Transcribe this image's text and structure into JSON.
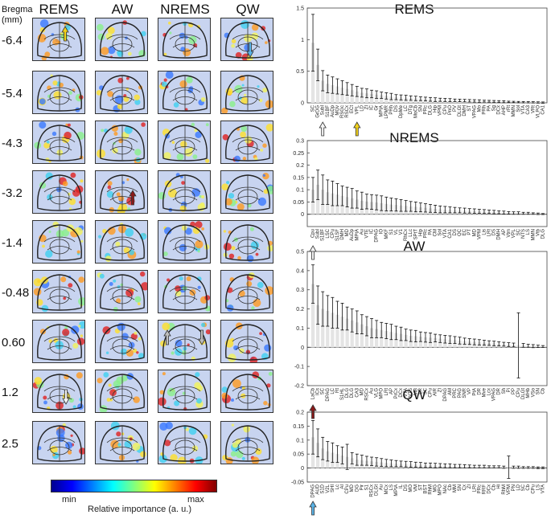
{
  "left": {
    "column_headers": [
      "REMS",
      "AW",
      "NREMS",
      "QW"
    ],
    "bregma_title_line1": "Bregma",
    "bregma_title_line2": "(mm)",
    "bregma_values": [
      "-6.4",
      "-5.4",
      "-4.3",
      "-3.2",
      "-1.4",
      "-0.48",
      "0.60",
      "1.2",
      "2.5"
    ],
    "colorbar": {
      "min_label": "min",
      "max_label": "max",
      "caption": "Relative importance (a. u.)"
    },
    "arrow_colors": {
      "yellow": "#f2d21a",
      "blue": "#5ab4e8",
      "red": "#8b1a1a",
      "white": "#f4f4f4",
      "gray": "#bdbdbd"
    }
  },
  "chart_data": [
    {
      "type": "bar",
      "title": "REMS",
      "ylim": [
        0,
        1.5
      ],
      "yticks": [
        0,
        0.5,
        1,
        1.5
      ],
      "categories": [
        "SC",
        "GrDG",
        "SubI",
        "S1BF",
        "AuDp",
        "MGv",
        "RSGc",
        "RSCx",
        "ECt",
        "VPL",
        "LD",
        "ZI",
        "IC",
        "Gr",
        "MPtA",
        "LPMR",
        "PRh",
        "DS",
        "DpMe",
        "LC",
        "DTg",
        "MoCb",
        "SN",
        "PRc",
        "DLG",
        "Hip",
        "VPM",
        "CPu",
        "PnO",
        "PV",
        "DLGt",
        "DMH",
        "ST",
        "VPAG",
        "Mo",
        "PRh",
        "PA",
        "Sg",
        "DCx",
        "AHP",
        "rRt",
        "MMN",
        "Sol",
        "VTA",
        "CA3",
        "VRt",
        "VLPO",
        "CA1"
      ],
      "values": [
        0.95,
        0.6,
        0.35,
        0.3,
        0.28,
        0.26,
        0.24,
        0.22,
        0.2,
        0.18,
        0.16,
        0.15,
        0.14,
        0.13,
        0.12,
        0.11,
        0.1,
        0.09,
        0.085,
        0.08,
        0.075,
        0.07,
        0.065,
        0.06,
        0.055,
        0.05,
        0.048,
        0.045,
        0.042,
        0.04,
        0.038,
        0.035,
        0.032,
        0.03,
        0.028,
        0.026,
        0.024,
        0.022,
        0.02,
        0.018,
        0.016,
        0.014,
        0.012,
        0.01,
        0.009,
        0.008,
        0.006,
        0.004
      ],
      "errors": [
        0.45,
        0.25,
        0.16,
        0.14,
        0.13,
        0.12,
        0.11,
        0.1,
        0.09,
        0.08,
        0.07,
        0.07,
        0.06,
        0.06,
        0.05,
        0.05,
        0.05,
        0.04,
        0.04,
        0.04,
        0.035,
        0.035,
        0.03,
        0.03,
        0.03,
        0.03,
        0.025,
        0.025,
        0.025,
        0.02,
        0.02,
        0.02,
        0.02,
        0.02,
        0.02,
        0.015,
        0.015,
        0.015,
        0.015,
        0.015,
        0.01,
        0.01,
        0.01,
        0.01,
        0.01,
        0.01,
        0.01,
        0.01
      ],
      "arrows": [
        {
          "index": 2,
          "color": "white"
        },
        {
          "index": 9,
          "color": "yellow"
        }
      ]
    },
    {
      "type": "bar",
      "title": "NREMS",
      "ylim": [
        -0.05,
        0.3
      ],
      "yticks": [
        0,
        0.05,
        0.1,
        0.15,
        0.2,
        0.25,
        0.3
      ],
      "categories": [
        "Cpu",
        "SubI",
        "S1BF",
        "LSC",
        "CPu",
        "S1SF",
        "DMH",
        "MD",
        "AuDp",
        "MPtA",
        "Au",
        "VTE",
        "IC",
        "DPAG",
        "IO",
        "MKF",
        "S1",
        "VL",
        "V1",
        "RhCx",
        "LLc",
        "SPtT",
        "Hip",
        "PRc",
        "PA",
        "CM",
        "Sol",
        "VTA",
        "CA1",
        "DS",
        "OC",
        "EC",
        "PT",
        "MD",
        "VPM",
        "Lis",
        "LRt",
        "DS",
        "DMH",
        "AP",
        "Vtm",
        "VPL",
        "SC",
        "NTS",
        "LS",
        "MMN",
        "Vtb",
        "DLG"
      ],
      "values": [
        0.1,
        0.12,
        0.1,
        0.09,
        0.085,
        0.08,
        0.075,
        0.07,
        0.065,
        0.06,
        0.055,
        0.052,
        0.05,
        0.048,
        0.045,
        0.042,
        0.04,
        0.038,
        0.036,
        0.034,
        0.032,
        0.03,
        0.028,
        0.026,
        0.024,
        0.022,
        0.02,
        0.019,
        0.018,
        0.017,
        0.016,
        0.015,
        0.014,
        0.013,
        0.012,
        0.011,
        0.01,
        0.009,
        0.008,
        0.007,
        0.006,
        0.005,
        0.005,
        0.004,
        0.004,
        0.003,
        0.002,
        0.001
      ],
      "errors": [
        0.05,
        0.06,
        0.06,
        0.05,
        0.05,
        0.045,
        0.04,
        0.04,
        0.04,
        0.035,
        0.035,
        0.03,
        0.03,
        0.03,
        0.03,
        0.028,
        0.026,
        0.025,
        0.024,
        0.022,
        0.02,
        0.02,
        0.018,
        0.017,
        0.016,
        0.015,
        0.014,
        0.013,
        0.012,
        0.011,
        0.01,
        0.01,
        0.009,
        0.009,
        0.008,
        0.008,
        0.007,
        0.007,
        0.006,
        0.006,
        0.005,
        0.005,
        0.005,
        0.004,
        0.004,
        0.003,
        0.003,
        0.002
      ],
      "arrows": [
        {
          "index": 0,
          "color": "white"
        }
      ]
    },
    {
      "type": "bar",
      "title": "AW",
      "ylim": [
        -0.2,
        0.5
      ],
      "yticks": [
        -0.2,
        -0.1,
        0,
        0.1,
        0.2,
        0.3,
        0.4,
        0.5
      ],
      "categories": [
        "LaCb",
        "ICs",
        "SC",
        "DPAG",
        "LC",
        "Rt",
        "S1HL",
        "DLG",
        "DLG",
        "CA3",
        "MD",
        "RSCx",
        "Au",
        "VLG",
        "MPO",
        "LRt",
        "AP",
        "PrCx",
        "DCx",
        "VTA",
        "NTS",
        "MB",
        "LR",
        "SC",
        "CPu",
        "AIR",
        "ZI",
        "DPAG",
        "AM",
        "PRC",
        "PAG",
        "SNR",
        "VP",
        "PtA",
        "DR",
        "Mve",
        "Lcx",
        "VPAG",
        "DR",
        "Sh",
        "Pi",
        "PP",
        "CPu",
        "DLGt",
        "MHb",
        "VSo",
        "SN",
        "Cb"
      ],
      "values": [
        0.33,
        0.22,
        0.2,
        0.19,
        0.18,
        0.17,
        0.16,
        0.15,
        0.14,
        0.13,
        0.12,
        0.11,
        0.1,
        0.095,
        0.09,
        0.085,
        0.08,
        0.075,
        0.07,
        0.065,
        0.06,
        0.058,
        0.055,
        0.052,
        0.05,
        0.048,
        0.045,
        0.042,
        0.04,
        0.038,
        0.035,
        0.032,
        0.03,
        0.028,
        0.026,
        0.024,
        0.022,
        0.02,
        0.018,
        0.016,
        0.014,
        0.012,
        0.01,
        0.01,
        0.008,
        0.006,
        0.005,
        0.004
      ],
      "errors": [
        0.1,
        0.1,
        0.09,
        0.08,
        0.08,
        0.07,
        0.07,
        0.06,
        0.06,
        0.06,
        0.05,
        0.05,
        0.05,
        0.045,
        0.04,
        0.04,
        0.04,
        0.035,
        0.035,
        0.03,
        0.03,
        0.03,
        0.025,
        0.025,
        0.025,
        0.02,
        0.02,
        0.02,
        0.02,
        0.018,
        0.018,
        0.016,
        0.015,
        0.015,
        0.014,
        0.013,
        0.012,
        0.012,
        0.011,
        0.01,
        0.01,
        0.01,
        0.17,
        0.01,
        0.008,
        0.008,
        0.006,
        0.005
      ],
      "arrows": [
        {
          "index": 0,
          "color": "red"
        }
      ]
    },
    {
      "type": "bar",
      "title": "QW",
      "ylim": [
        -0.05,
        0.2
      ],
      "yticks": [
        -0.05,
        0,
        0.05,
        0.1,
        0.15,
        0.2
      ],
      "categories": [
        "DPAG",
        "AUD",
        "S1D",
        "V2L",
        "SHI",
        "Lc",
        "AI",
        "CPu",
        "MD",
        "DG",
        "Pir",
        "S1",
        "RSCx",
        "DLGt",
        "Au",
        "MCx",
        "LS",
        "MPtA",
        "IL",
        "DS",
        "MO",
        "VM",
        "ST",
        "BST",
        "RhM",
        "MG",
        "MPO",
        "NAc",
        "Cb",
        "MM",
        "SN",
        "Cx",
        "ZI",
        "LRt",
        "PRc",
        "RRF",
        "DCx",
        "Cb",
        "Hi",
        "RhM",
        "VPM",
        "PN",
        "LD",
        "SC",
        "Cb",
        "CPu",
        "LS",
        "VTA"
      ],
      "values": [
        0.11,
        0.09,
        0.07,
        0.06,
        0.055,
        0.05,
        0.045,
        0.04,
        0.035,
        0.03,
        0.028,
        0.026,
        0.024,
        0.022,
        0.02,
        0.018,
        0.017,
        0.016,
        0.015,
        0.014,
        0.013,
        0.012,
        0.011,
        0.01,
        0.01,
        0.009,
        0.009,
        0.008,
        0.008,
        0.007,
        0.007,
        0.006,
        0.006,
        0.005,
        0.005,
        0.005,
        0.004,
        0.004,
        0.004,
        0.003,
        0.003,
        0.003,
        0.003,
        0.002,
        0.002,
        0.002,
        0.001,
        0.001
      ],
      "errors": [
        0.06,
        0.05,
        0.04,
        0.035,
        0.035,
        0.03,
        0.03,
        0.045,
        0.02,
        0.02,
        0.018,
        0.016,
        0.015,
        0.015,
        0.014,
        0.013,
        0.012,
        0.011,
        0.01,
        0.01,
        0.01,
        0.009,
        0.009,
        0.008,
        0.008,
        0.008,
        0.007,
        0.007,
        0.007,
        0.006,
        0.006,
        0.006,
        0.005,
        0.005,
        0.005,
        0.005,
        0.004,
        0.004,
        0.004,
        0.004,
        0.04,
        0.004,
        0.004,
        0.003,
        0.003,
        0.003,
        0.003,
        0.003
      ],
      "arrows": [
        {
          "index": 0,
          "color": "blue"
        }
      ]
    }
  ]
}
